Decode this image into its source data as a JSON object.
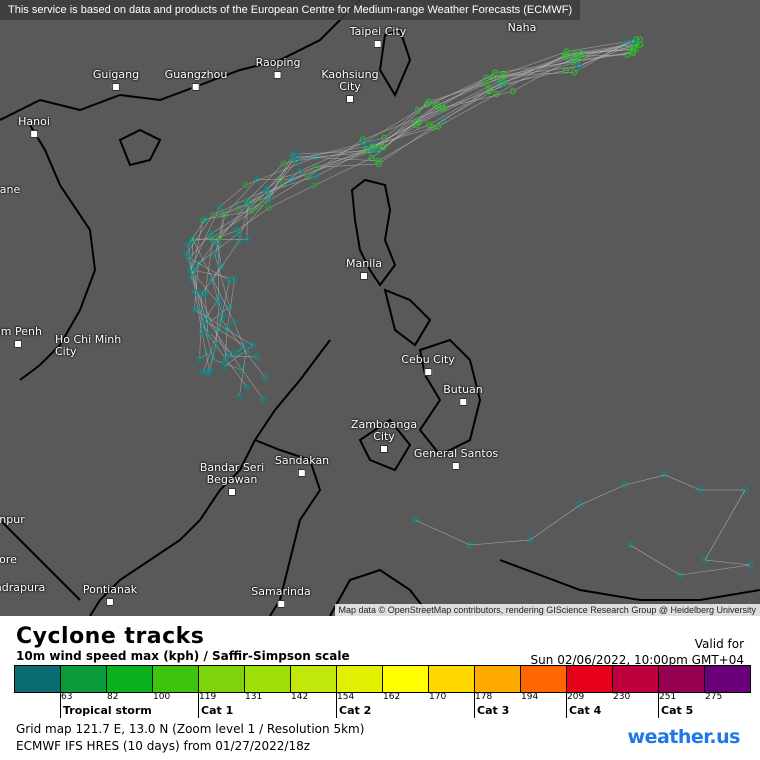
{
  "map": {
    "notice": "This service is based on data and products of the European Centre for Medium-range Weather Forecasts (ECMWF)",
    "attribution": "Map data © OpenStreetMap contributors, rendering GIScience Research Group @ Heidelberg University",
    "background_color": "#595959",
    "cities": [
      {
        "name": "Taipei City"
      },
      {
        "name": "Guigang"
      },
      {
        "name": "Guangzhou"
      },
      {
        "name": "Raoping"
      },
      {
        "name": "Kaohsiung City"
      },
      {
        "name": "Hanoi"
      },
      {
        "name": "ane"
      },
      {
        "name": "Manila"
      },
      {
        "name": "om Penh"
      },
      {
        "name": "Ho Chi Minh City"
      },
      {
        "name": "Cebu City"
      },
      {
        "name": "Butuan"
      },
      {
        "name": "Zamboanga City"
      },
      {
        "name": "General Santos"
      },
      {
        "name": "Bandar Seri Begawan"
      },
      {
        "name": "Sandakan"
      },
      {
        "name": "npur"
      },
      {
        "name": "ore"
      },
      {
        "name": "ndrapura"
      },
      {
        "name": "Pontianak"
      },
      {
        "name": "Samarinda"
      },
      {
        "name": "Naha"
      }
    ]
  },
  "legend": {
    "title": "Cyclone tracks",
    "subtitle": "10m wind speed max (kph) / Saffir-Simpson scale",
    "valid_label": "Valid for",
    "valid_time": "Sun 02/06/2022, 10:00pm GMT+04",
    "colors": [
      "#0a6b73",
      "#0a9b3c",
      "#0ab21e",
      "#3ec40f",
      "#7ed40a",
      "#a0e00a",
      "#c0e80a",
      "#e0f000",
      "#ffff00",
      "#ffd800",
      "#ffaa00",
      "#ff6600",
      "#e60019",
      "#c0003c",
      "#960050",
      "#6a0078"
    ],
    "ticks": [
      "63",
      "82",
      "100",
      "119",
      "131",
      "142",
      "154",
      "162",
      "170",
      "178",
      "194",
      "209",
      "230",
      "251",
      "275"
    ],
    "categories": [
      "Tropical storm",
      "Cat 1",
      "Cat 2",
      "Cat 3",
      "Cat 4",
      "Cat 5"
    ]
  },
  "info": {
    "grid": "Grid map 121.7 E, 13.0 N (Zoom level 1 / Resolution 5km)",
    "model": "ECMWF IFS HRES (10 days) from  01/27/2022/18z"
  },
  "logo": "weather.us"
}
